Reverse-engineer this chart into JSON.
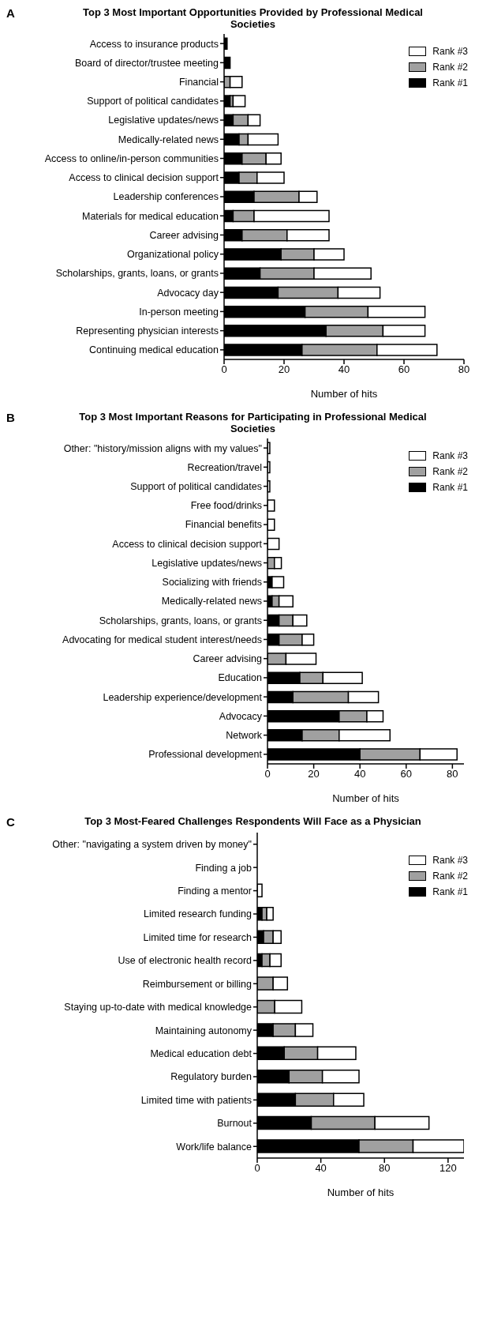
{
  "chart_data": [
    {
      "type": "bar",
      "orientation": "horizontal",
      "stacked": true,
      "title": "Top 3 Most Important Opportunities Provided by Professional Medical Societies",
      "annotations": [
        "A"
      ],
      "xlabel": "Number of hits",
      "categories": [
        "Access to insurance products",
        "Board of director/trustee meeting",
        "Financial",
        "Support of political candidates ",
        "Legislative updates/news",
        "Medically-related news",
        "Access to online/in-person communities",
        "Access to clinical decision support",
        "Leadership conferences",
        "Materials for medical education",
        "Career advising",
        "Organizational policy",
        "Scholarships, grants, loans, or grants",
        "Advocacy day",
        "In-person meeting",
        "Representing physician interests",
        "Continuing medical education"
      ],
      "series": [
        {
          "name": "Rank #1",
          "color": "#000000",
          "values": [
            1,
            2,
            0,
            2,
            3,
            5,
            6,
            5,
            10,
            3,
            6,
            19,
            12,
            18,
            27,
            34,
            26
          ]
        },
        {
          "name": "Rank #2",
          "color": "#a0a0a0",
          "values": [
            0,
            0,
            2,
            1,
            5,
            3,
            8,
            6,
            15,
            7,
            15,
            11,
            18,
            20,
            21,
            19,
            25
          ]
        },
        {
          "name": "Rank #3",
          "color": "#ffffff",
          "values": [
            0,
            0,
            4,
            4,
            4,
            10,
            5,
            9,
            6,
            25,
            14,
            10,
            19,
            14,
            19,
            14,
            20
          ]
        }
      ],
      "xlim": [
        0,
        80
      ],
      "xticks": [
        0,
        20,
        40,
        60,
        80
      ],
      "legend": "top right"
    },
    {
      "type": "bar",
      "orientation": "horizontal",
      "stacked": true,
      "title": "Top 3 Most Important Reasons for Participating in Professional Medical Societies",
      "annotations": [
        "B"
      ],
      "xlabel": "Number of hits",
      "categories": [
        "Other: \"history/mission aligns with my values\"",
        "Recreation/travel",
        "Support of political candidates ",
        "Free food/drinks",
        "Financial benefits",
        "Access to clinical decision support",
        "Legislative updates/news",
        "Socializing with friends",
        "Medically-related news",
        "Scholarships, grants, loans, or grants",
        "Advocating for medical student interest/needs",
        "Career advising",
        "Education",
        "Leadership experience/development",
        "Advocacy",
        "Network",
        "Professional development"
      ],
      "series": [
        {
          "name": "Rank #1",
          "color": "#000000",
          "values": [
            0,
            0,
            0,
            0,
            0,
            0,
            0,
            2,
            2,
            5,
            5,
            0,
            14,
            11,
            31,
            15,
            40
          ]
        },
        {
          "name": "Rank #2",
          "color": "#a0a0a0",
          "values": [
            0,
            0,
            0,
            0,
            0,
            0,
            3,
            0,
            3,
            6,
            10,
            8,
            10,
            24,
            12,
            16,
            26
          ]
        },
        {
          "name": "Rank #3",
          "color": "#ffffff",
          "values": [
            1,
            1,
            1,
            3,
            3,
            5,
            3,
            5,
            6,
            6,
            5,
            13,
            17,
            13,
            7,
            22,
            16
          ]
        }
      ],
      "xlim": [
        0,
        85
      ],
      "xticks": [
        0,
        20,
        40,
        60,
        80
      ],
      "legend": "top right"
    },
    {
      "type": "bar",
      "orientation": "horizontal",
      "stacked": true,
      "title": "Top 3 Most-Feared Challenges Respondents Will Face as a Physician",
      "annotations": [
        "C"
      ],
      "xlabel": "Number of hits",
      "categories": [
        "Other: \"navigating a system driven by money\"",
        "Finding a job",
        "Finding a mentor",
        "Limited research funding",
        "Limited time for research",
        "Use of electronic health record",
        "Reimbursement or billing",
        "Staying up-to-date with medical knowledge",
        "Maintaining autonomy",
        "Medical education debt",
        "Regulatory burden",
        "Limited time with patients",
        "Burnout",
        "Work/life balance"
      ],
      "series": [
        {
          "name": "Rank #1",
          "color": "#000000",
          "values": [
            0,
            0,
            0,
            3,
            4,
            3,
            0,
            0,
            10,
            17,
            20,
            24,
            34,
            64
          ]
        },
        {
          "name": "Rank #2",
          "color": "#a0a0a0",
          "values": [
            0,
            0,
            0,
            3,
            6,
            5,
            10,
            11,
            14,
            21,
            21,
            24,
            40,
            34
          ]
        },
        {
          "name": "Rank #3",
          "color": "#ffffff",
          "values": [
            null,
            null,
            3,
            4,
            5,
            7,
            9,
            17,
            11,
            24,
            23,
            19,
            34,
            32
          ]
        }
      ],
      "xlim": [
        0,
        130
      ],
      "xticks": [
        0,
        40,
        80,
        120
      ],
      "legend": "top right"
    }
  ]
}
